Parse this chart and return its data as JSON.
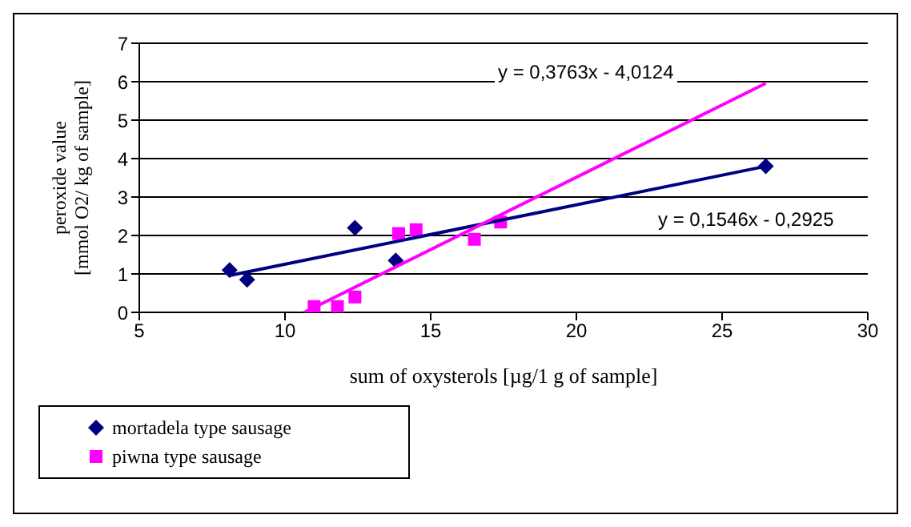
{
  "chart_data": {
    "type": "scatter",
    "xlabel": "sum of oxysterols [µg/1 g of sample]",
    "ylabel": "peroxide value [mmol O2/ kg of sample]",
    "xlim": [
      5,
      30
    ],
    "xticks": [
      5,
      10,
      15,
      20,
      25,
      30
    ],
    "ylim": [
      0,
      7
    ],
    "yticks": [
      0,
      1,
      2,
      3,
      4,
      5,
      6,
      7
    ],
    "grid": "y",
    "legend": "bottom left",
    "series": [
      {
        "name": "mortadela type sausage",
        "color": "#000080",
        "marker": "diamond",
        "x": [
          8.1,
          8.7,
          12.4,
          13.8,
          26.5
        ],
        "values": [
          1.1,
          0.85,
          2.2,
          1.35,
          3.8
        ]
      },
      {
        "name": "piwna type sausage",
        "color": "#ff00ff",
        "marker": "square",
        "x": [
          11.0,
          11.8,
          12.4,
          13.9,
          14.5,
          16.5,
          17.4
        ],
        "values": [
          0.15,
          0.15,
          0.4,
          2.05,
          2.15,
          1.9,
          2.35
        ]
      },
      {
        "type": "line",
        "color": "#000080",
        "x": [
          8.1,
          26.5
        ],
        "values": [
          0.96,
          3.8
        ]
      },
      {
        "type": "line",
        "color": "#ff00ff",
        "x": [
          10.66,
          26.5
        ],
        "values": [
          0,
          5.96
        ]
      }
    ],
    "annotations": [
      "y = 0,3763x - 4,0124",
      "y = 0,1546x - 0,2925"
    ]
  }
}
